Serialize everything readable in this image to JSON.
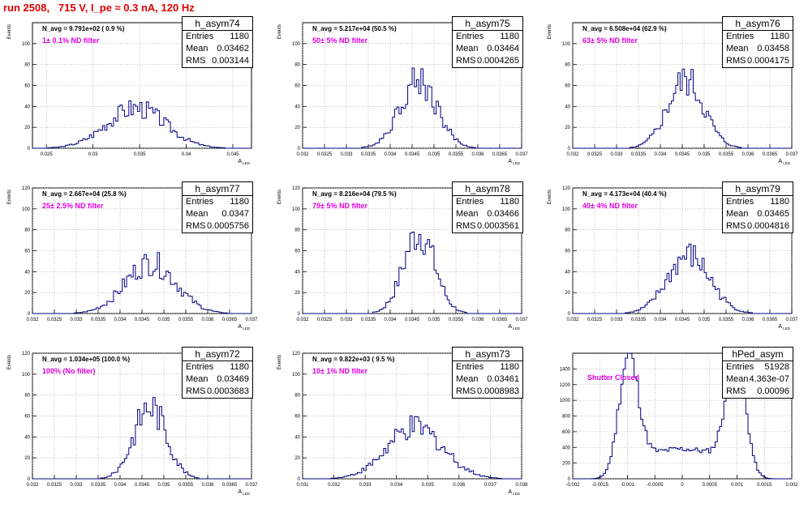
{
  "page": {
    "title": "run 2508,   715 V, I_pe ≈ 0.3 nA, 120 Hz"
  },
  "colors": {
    "title": "#e00000",
    "filter_text": "#e000e0",
    "histogram_line": "#000080",
    "grid": "#999999"
  },
  "chart_data": [
    {
      "type": "bar",
      "name": "h_asym74",
      "navg": "N_avg = 9.791e+02 ( 0.9 %)",
      "filter": "1± 0.1% ND filter",
      "stats": {
        "entries": "1180",
        "mean": "0.03462",
        "rms": "0.003144"
      },
      "ylabel": "Events",
      "xlabel": "A_{LED}",
      "xlim": [
        0.0235,
        0.047
      ],
      "ylim": [
        0,
        120
      ],
      "xticks": [
        "0.025",
        "0.03",
        "0.035",
        "0.04",
        "0.045"
      ],
      "xtick_values": [
        0.025,
        0.03,
        0.035,
        0.04,
        0.045
      ],
      "yticks": [
        "0",
        "20",
        "40",
        "60",
        "80",
        "100"
      ],
      "mean_value": 0.03462,
      "sigma": 0.003144,
      "peak": 40
    },
    {
      "type": "bar",
      "name": "h_asym75",
      "navg": "N_avg = 5.217e+04 (50.5 %)",
      "filter": "50± 5% ND filter",
      "stats": {
        "entries": "1180",
        "mean": "0.03464",
        "rms": "0.0004265"
      },
      "ylabel": "Events",
      "xlabel": "A_{LED}",
      "xlim": [
        0.032,
        0.037
      ],
      "ylim": [
        0,
        120
      ],
      "xticks": [
        "0.032",
        "0.0325",
        "0.033",
        "0.0335",
        "0.034",
        "0.0345",
        "0.035",
        "0.0355",
        "0.036",
        "0.0365",
        "0.037"
      ],
      "xtick_values": [
        0.032,
        0.0325,
        0.033,
        0.0335,
        0.034,
        0.0345,
        0.035,
        0.0355,
        0.036,
        0.0365,
        0.037
      ],
      "yticks": [
        "0",
        "20",
        "40",
        "60",
        "80",
        "100"
      ],
      "mean_value": 0.03464,
      "sigma": 0.0004265,
      "peak": 67
    },
    {
      "type": "bar",
      "name": "h_asym76",
      "navg": "N_avg = 6.508e+04 (62.9 %)",
      "filter": "63± 5% ND filter",
      "stats": {
        "entries": "1180",
        "mean": "0.03458",
        "rms": "0.0004175"
      },
      "ylabel": "Events",
      "xlabel": "A_{LED}",
      "xlim": [
        0.032,
        0.037
      ],
      "ylim": [
        0,
        120
      ],
      "xticks": [
        "0.032",
        "0.0325",
        "0.033",
        "0.0335",
        "0.034",
        "0.0345",
        "0.035",
        "0.0355",
        "0.036",
        "0.0365",
        "0.037"
      ],
      "xtick_values": [
        0.032,
        0.0325,
        0.033,
        0.0335,
        0.034,
        0.0345,
        0.035,
        0.0355,
        0.036,
        0.0365,
        0.037
      ],
      "yticks": [
        "0",
        "20",
        "40",
        "60",
        "80",
        "100"
      ],
      "mean_value": 0.03458,
      "sigma": 0.0004175,
      "peak": 67
    },
    {
      "type": "bar",
      "name": "h_asym77",
      "navg": "N_avg = 2.667e+04 (25.8 %)",
      "filter": "25± 2.5% ND filter",
      "stats": {
        "entries": "1180",
        "mean": "0.0347",
        "rms": "0.0005756"
      },
      "ylabel": "Events",
      "xlabel": "A_{LED}",
      "xlim": [
        0.032,
        0.037
      ],
      "ylim": [
        0,
        120
      ],
      "xticks": [
        "0.032",
        "0.0325",
        "0.033",
        "0.0335",
        "0.034",
        "0.0345",
        "0.035",
        "0.0355",
        "0.036",
        "0.0365",
        "0.037"
      ],
      "xtick_values": [
        0.032,
        0.0325,
        0.033,
        0.0335,
        0.034,
        0.0345,
        0.035,
        0.0355,
        0.036,
        0.0365,
        0.037
      ],
      "yticks": [
        "0",
        "20",
        "40",
        "60",
        "80",
        "100",
        "120"
      ],
      "mean_value": 0.0347,
      "sigma": 0.0005756,
      "peak": 50
    },
    {
      "type": "bar",
      "name": "h_asym78",
      "navg": "N_avg = 8.216e+04 (79.5 %)",
      "filter": "79± 5% ND filter",
      "stats": {
        "entries": "1180",
        "mean": "0.03466",
        "rms": "0.0003561"
      },
      "ylabel": "Events",
      "xlabel": "A_{LED}",
      "xlim": [
        0.032,
        0.037
      ],
      "ylim": [
        0,
        120
      ],
      "xticks": [
        "0.032",
        "0.0325",
        "0.033",
        "0.0335",
        "0.034",
        "0.0345",
        "0.035",
        "0.0355",
        "0.036",
        "0.0365",
        "0.037"
      ],
      "xtick_values": [
        0.032,
        0.0325,
        0.033,
        0.0335,
        0.034,
        0.0345,
        0.035,
        0.0355,
        0.036,
        0.0365,
        0.037
      ],
      "yticks": [
        "0",
        "20",
        "40",
        "60",
        "80",
        "100",
        "120"
      ],
      "mean_value": 0.03466,
      "sigma": 0.0003561,
      "peak": 80
    },
    {
      "type": "bar",
      "name": "h_asym79",
      "navg": "N_avg = 4.173e+04 (40.4 %)",
      "filter": "40± 4% ND filter",
      "stats": {
        "entries": "1180",
        "mean": "0.03465",
        "rms": "0.0004816"
      },
      "ylabel": "Events",
      "xlabel": "A_{LED}",
      "xlim": [
        0.032,
        0.037
      ],
      "ylim": [
        0,
        120
      ],
      "xticks": [
        "0.032",
        "0.0325",
        "0.033",
        "0.0335",
        "0.034",
        "0.0345",
        "0.035",
        "0.0355",
        "0.036",
        "0.0365",
        "0.037"
      ],
      "xtick_values": [
        0.032,
        0.0325,
        0.033,
        0.0335,
        0.034,
        0.0345,
        0.035,
        0.0355,
        0.036,
        0.0365,
        0.037
      ],
      "yticks": [
        "0",
        "20",
        "40",
        "60",
        "80",
        "100",
        "120"
      ],
      "mean_value": 0.03465,
      "sigma": 0.0004816,
      "peak": 57
    },
    {
      "type": "bar",
      "name": "h_asym72",
      "navg": "N_avg = 1.034e+05 (100.0 %)",
      "filter": "100% (No filter)",
      "stats": {
        "entries": "1180",
        "mean": "0.03469",
        "rms": "0.0003683"
      },
      "ylabel": "Events",
      "xlabel": "A_{LED}",
      "xlim": [
        0.032,
        0.037
      ],
      "ylim": [
        0,
        120
      ],
      "xticks": [
        "0.032",
        "0.0325",
        "0.033",
        "0.0335",
        "0.034",
        "0.0345",
        "0.035",
        "0.0355",
        "0.036",
        "0.0365",
        "0.037"
      ],
      "xtick_values": [
        0.032,
        0.0325,
        0.033,
        0.0335,
        0.034,
        0.0345,
        0.035,
        0.0355,
        0.036,
        0.0365,
        0.037
      ],
      "yticks": [
        "0",
        "20",
        "40",
        "60",
        "80",
        "100",
        "120"
      ],
      "mean_value": 0.03469,
      "sigma": 0.0003683,
      "peak": 72
    },
    {
      "type": "bar",
      "name": "h_asym73",
      "navg": "N_avg = 9.822e+03 ( 9.5 %)",
      "filter": "10± 1% ND filter",
      "stats": {
        "entries": "1180",
        "mean": "0.03461",
        "rms": "0.0008983"
      },
      "ylabel": "Events",
      "xlabel": "A_{LED}",
      "xlim": [
        0.031,
        0.038
      ],
      "ylim": [
        0,
        120
      ],
      "xticks": [
        "0.031",
        "0.032",
        "0.033",
        "0.034",
        "0.035",
        "0.036",
        "0.037",
        "0.038"
      ],
      "xtick_values": [
        0.031,
        0.032,
        0.033,
        0.034,
        0.035,
        0.036,
        0.037,
        0.038
      ],
      "yticks": [
        "0",
        "20",
        "40",
        "60",
        "80",
        "100",
        "120"
      ],
      "mean_value": 0.03461,
      "sigma": 0.0008983,
      "peak": 50
    },
    {
      "type": "bar",
      "name": "hPed_asym",
      "navg": "",
      "filter": "Shutter Closed",
      "stats": {
        "entries": "51928",
        "mean": "4.363e-07",
        "rms": "0.00096"
      },
      "ylabel": "",
      "xlabel": "",
      "xlim": [
        -0.002,
        0.002
      ],
      "ylim": [
        0,
        1600
      ],
      "xticks": [
        "-0.002",
        "-0.0015",
        "-0.001",
        "-0.0005",
        "0",
        "0.0005",
        "0.001",
        "0.0015",
        "0.002"
      ],
      "xtick_values": [
        -0.002,
        -0.0015,
        -0.001,
        -0.0005,
        0,
        0.0005,
        0.001,
        0.0015,
        0.002
      ],
      "yticks": [
        "0",
        "200",
        "400",
        "600",
        "800",
        "1000",
        "1200",
        "1400"
      ],
      "bimodal": true,
      "peak": 1550
    }
  ]
}
